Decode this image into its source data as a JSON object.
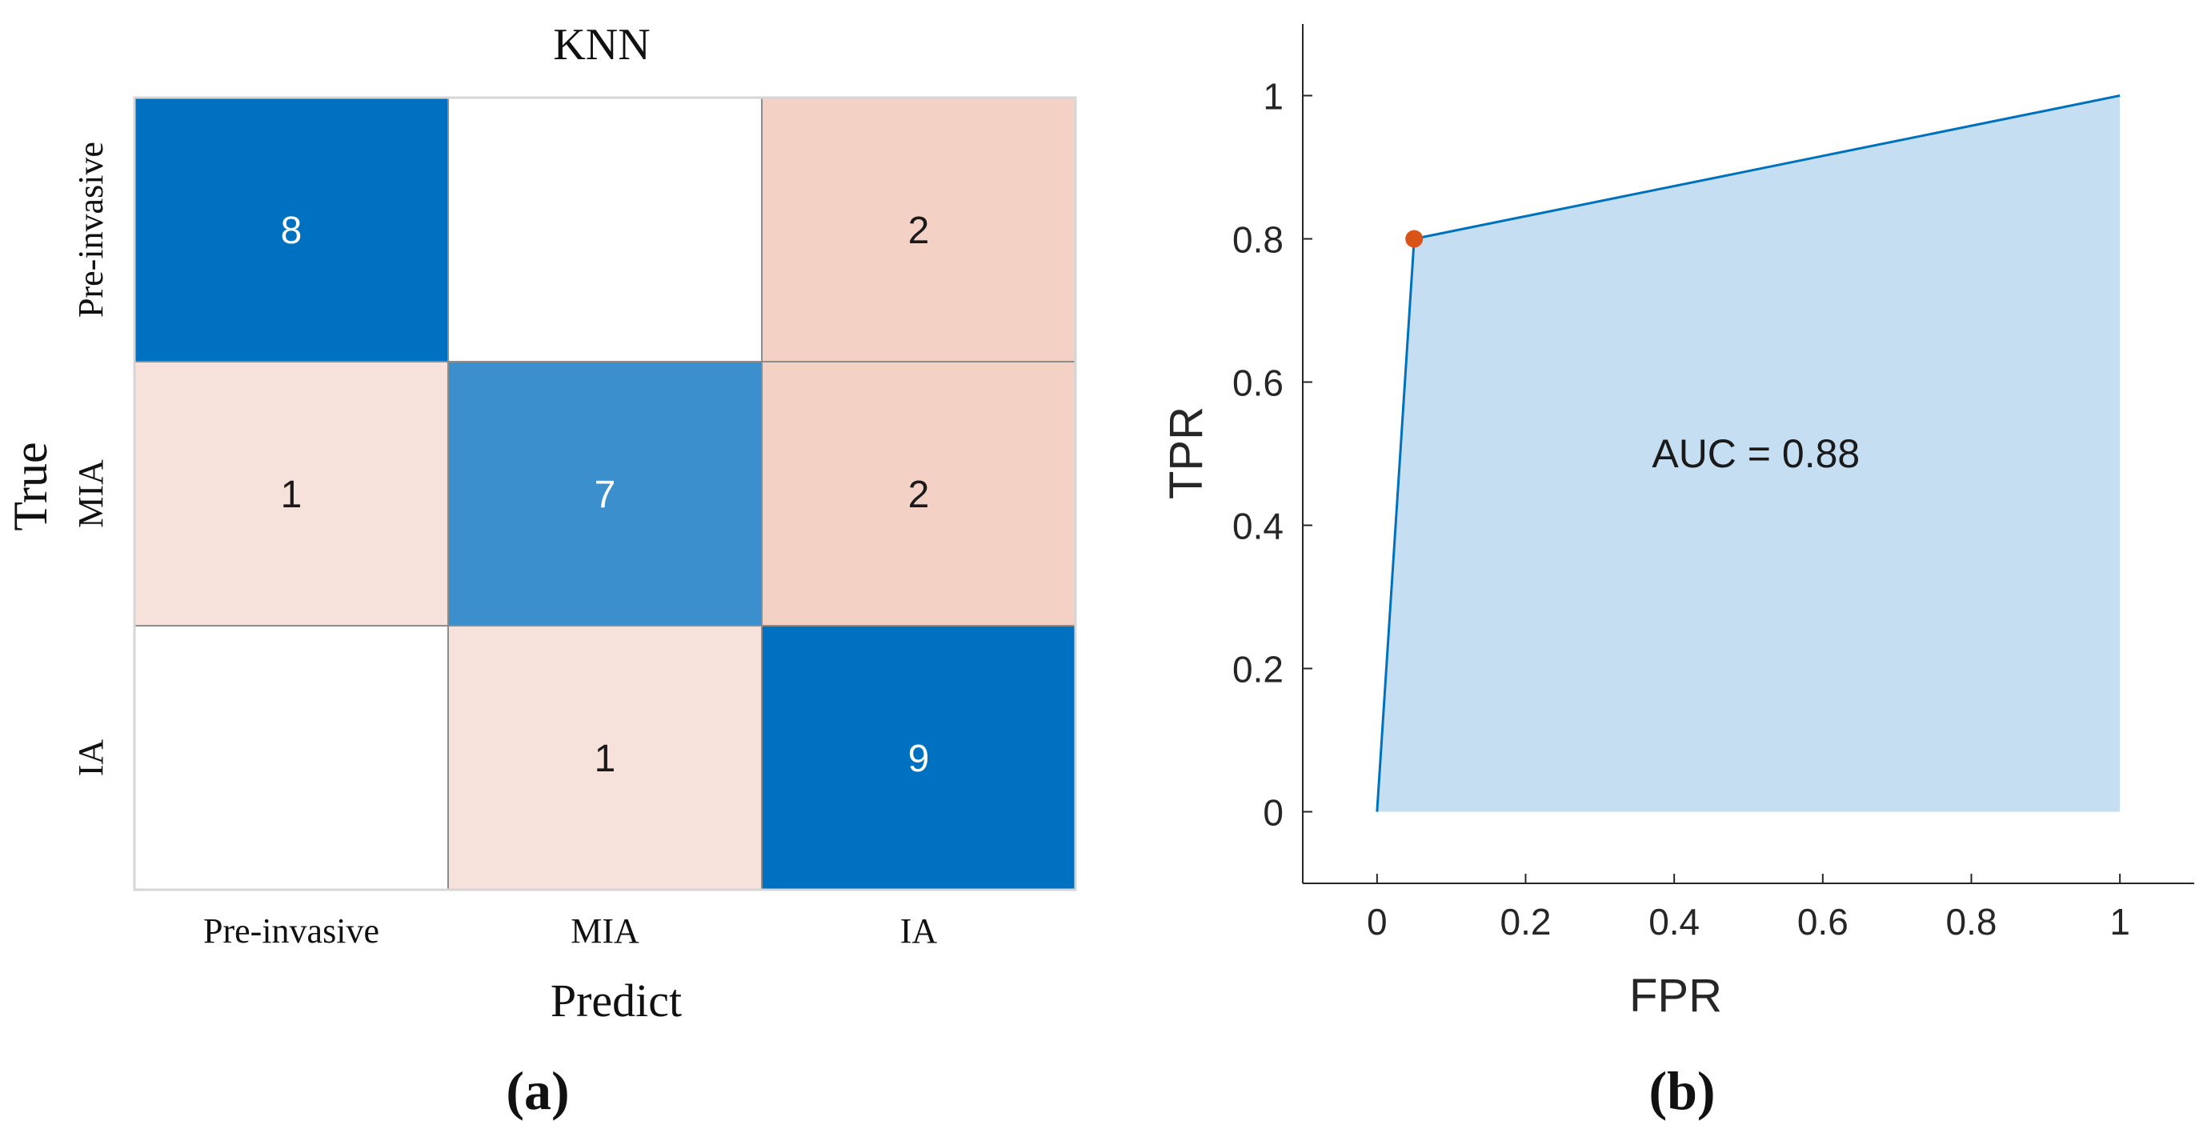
{
  "chart_data": [
    {
      "type": "heatmap",
      "panel_label": "(a)",
      "title": "KNN",
      "xlabel": "Predict",
      "ylabel": "True",
      "x_categories": [
        "Pre-invasive",
        "MIA",
        "IA"
      ],
      "y_categories": [
        "Pre-invasive",
        "MIA",
        "IA"
      ],
      "matrix": [
        [
          8,
          null,
          2
        ],
        [
          1,
          7,
          2
        ],
        [
          null,
          1,
          9
        ]
      ],
      "colors": {
        "diag_high": "#0070c0",
        "diag_mid": "#3c8fcd",
        "offdiag_2": "#f3d2c5",
        "offdiag_1": "#f6e2da",
        "empty": "#ffffff",
        "text_light": "#ffffff",
        "text_dark": "#1a1a1a",
        "grid": "#8c8c8c"
      }
    },
    {
      "type": "area",
      "panel_label": "(b)",
      "xlabel": "FPR",
      "ylabel": "TPR",
      "annotation": "AUC = 0.88",
      "x": [
        0,
        0.05,
        1
      ],
      "y": [
        0,
        0.8,
        1
      ],
      "operating_point": {
        "x": 0.05,
        "y": 0.8
      },
      "xlim": [
        -0.1,
        1.1
      ],
      "ylim": [
        -0.1,
        1.1
      ],
      "xticks": [
        0,
        0.2,
        0.4,
        0.6,
        0.8,
        1
      ],
      "yticks": [
        0,
        0.2,
        0.4,
        0.6,
        0.8,
        1
      ],
      "xtick_labels": [
        "0",
        "0.2",
        "0.4",
        "0.6",
        "0.8",
        "1"
      ],
      "ytick_labels": [
        "0",
        "0.2",
        "0.4",
        "0.6",
        "0.8",
        "1"
      ],
      "colors": {
        "fill": "#c5def2",
        "line": "#0072bd",
        "point": "#d95319",
        "axis": "#262626"
      }
    }
  ]
}
